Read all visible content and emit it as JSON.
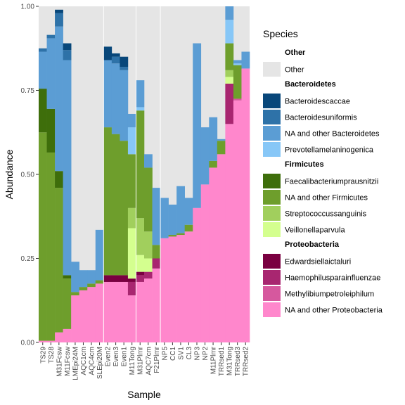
{
  "chart_data": {
    "type": "bar",
    "stacked": true,
    "xlabel": "Sample",
    "ylabel": "Abundance",
    "ylim": [
      0,
      1
    ],
    "yticks": [
      "0.00",
      "0.25",
      "0.50",
      "0.75",
      "1.00"
    ],
    "ytick_values": [
      0,
      0.25,
      0.5,
      0.75,
      1.0
    ],
    "panel_background": "#e5e5e5",
    "legend": {
      "title": "Species",
      "placement": "right",
      "groups": [
        {
          "name": "Other",
          "items": [
            "Other"
          ]
        },
        {
          "name": "Bacteroidetes",
          "items": [
            "Bacteroidescaccae",
            "Bacteroidesuniformis",
            "NA and other Bacteroidetes",
            "Prevotellamelaninogenica"
          ]
        },
        {
          "name": "Firmicutes",
          "items": [
            "Faecalibacteriumprausnitzii",
            "NA and other Firmicutes",
            "Streptococcussanguinis",
            "Veillonellaparvula"
          ]
        },
        {
          "name": "Proteobacteria",
          "items": [
            "Edwardsiellaictaluri",
            "Haemophilusparainfluenzae",
            "Methylibiumpetroleiphilum",
            "NA and other Proteobacteria"
          ]
        }
      ]
    },
    "colors": {
      "Other": "#e5e5e5",
      "Bacteroidescaccae": "#08477a",
      "Bacteroidesuniformis": "#2e72a8",
      "NA and other Bacteroidetes": "#5b9dd4",
      "Prevotellamelaninogenica": "#87c7f7",
      "Faecalibacteriumprausnitzii": "#3e6e0b",
      "NA and other Firmicutes": "#6e9e2c",
      "Streptococcussanguinis": "#a1cf5d",
      "Veillonellaparvula": "#d4ff8f",
      "Edwardsiellaictaluri": "#7a0041",
      "Haemophilusparainfluenzae": "#a82670",
      "Methylibiumpetroleiphilum": "#d6589e",
      "NA and other Proteobacteria": "#ff87cc"
    },
    "stack_order": [
      "NA and other Proteobacteria",
      "Methylibiumpetroleiphilum",
      "Haemophilusparainfluenzae",
      "Edwardsiellaictaluri",
      "Veillonellaparvula",
      "Streptococcussanguinis",
      "NA and other Firmicutes",
      "Faecalibacteriumprausnitzii",
      "Prevotellamelaninogenica",
      "NA and other Bacteroidetes",
      "Bacteroidesuniformis",
      "Bacteroidescaccae"
    ],
    "categories": [
      "TS29",
      "TS28",
      "M31Fcsw",
      "M11Fcsw",
      "LMEpi24M",
      "AQC1cm",
      "AQC4cm",
      "SLEpi20M",
      "Even2",
      "Even3",
      "Even1",
      "M11Tong",
      "M31Plmr",
      "AQC7cm",
      "F21Plmr",
      "NP5",
      "CC1",
      "SV1",
      "CL3",
      "NP3",
      "NP2",
      "M11Plmr",
      "TRRsed1",
      "M31Tong",
      "TRRsed3",
      "TRRsed2"
    ],
    "group_dividers_after": [
      "SLEpi20M",
      "M11Tong",
      "F21Plmr"
    ],
    "series": [
      {
        "name": "NA and other Proteobacteria",
        "values": [
          0.005,
          0.005,
          0.03,
          0.04,
          0.14,
          0.155,
          0.165,
          0.175,
          0.18,
          0.18,
          0.18,
          0.14,
          0.18,
          0.19,
          0.22,
          0.31,
          0.315,
          0.32,
          0.33,
          0.4,
          0.47,
          0.52,
          0.56,
          0.65,
          0.72,
          0.815
        ]
      },
      {
        "name": "Methylibiumpetroleiphilum",
        "values": [
          0,
          0,
          0,
          0,
          0,
          0,
          0,
          0,
          0,
          0,
          0,
          0,
          0,
          0,
          0,
          0,
          0,
          0,
          0,
          0,
          0,
          0,
          0,
          0,
          0.005,
          0
        ]
      },
      {
        "name": "Haemophilusparainfluenzae",
        "values": [
          0,
          0,
          0,
          0,
          0,
          0,
          0,
          0,
          0,
          0,
          0,
          0.04,
          0.02,
          0.02,
          0.03,
          0,
          0,
          0,
          0,
          0,
          0,
          0,
          0,
          0.12,
          0,
          0
        ]
      },
      {
        "name": "Edwardsiellaictaluri",
        "values": [
          0,
          0,
          0,
          0,
          0,
          0,
          0,
          0,
          0.02,
          0.02,
          0.02,
          0.01,
          0.01,
          0,
          0,
          0,
          0,
          0,
          0,
          0,
          0,
          0,
          0,
          0,
          0,
          0
        ]
      },
      {
        "name": "Veillonellaparvula",
        "values": [
          0,
          0,
          0,
          0,
          0,
          0,
          0,
          0,
          0,
          0,
          0,
          0.15,
          0.05,
          0.04,
          0,
          0,
          0,
          0,
          0,
          0,
          0,
          0,
          0,
          0.02,
          0,
          0
        ]
      },
      {
        "name": "Streptococcussanguinis",
        "values": [
          0,
          0,
          0,
          0,
          0,
          0,
          0,
          0,
          0,
          0,
          0,
          0.06,
          0.11,
          0.08,
          0,
          0,
          0,
          0,
          0,
          0,
          0,
          0,
          0,
          0.02,
          0,
          0
        ]
      },
      {
        "name": "NA and other Firmicutes",
        "values": [
          0.62,
          0.56,
          0.43,
          0.15,
          0.01,
          0.01,
          0.01,
          0.01,
          0.44,
          0.42,
          0.4,
          0.16,
          0.32,
          0.19,
          0.04,
          0,
          0.005,
          0.005,
          0.02,
          0,
          0,
          0.02,
          0.04,
          0.08,
          0.1,
          0
        ]
      },
      {
        "name": "Faecalibacteriumprausnitzii",
        "values": [
          0.13,
          0.13,
          0.05,
          0.01,
          0,
          0,
          0,
          0,
          0,
          0,
          0,
          0,
          0,
          0,
          0,
          0,
          0,
          0,
          0,
          0,
          0,
          0,
          0,
          0,
          0,
          0
        ]
      },
      {
        "name": "Prevotellamelaninogenica",
        "values": [
          0,
          0,
          0,
          0,
          0,
          0,
          0,
          0,
          0,
          0,
          0,
          0.08,
          0.01,
          0,
          0,
          0,
          0,
          0,
          0,
          0,
          0,
          0,
          0,
          0.07,
          0.005,
          0
        ]
      },
      {
        "name": "NA and other Bacteroidetes",
        "values": [
          0.11,
          0.21,
          0.43,
          0.64,
          0.09,
          0.05,
          0.04,
          0.15,
          0.2,
          0.21,
          0.21,
          0.04,
          0.08,
          0.04,
          0.17,
          0.12,
          0.09,
          0.14,
          0.08,
          0.49,
          0.17,
          0.13,
          0.005,
          0.04,
          0.01,
          0.05
        ]
      },
      {
        "name": "Bacteroidesuniformis",
        "values": [
          0.01,
          0.01,
          0.04,
          0.03,
          0,
          0,
          0,
          0,
          0,
          0.02,
          0.01,
          0,
          0,
          0,
          0,
          0,
          0,
          0,
          0,
          0,
          0,
          0,
          0,
          0,
          0,
          0
        ]
      },
      {
        "name": "Bacteroidescaccae",
        "values": [
          0,
          0,
          0.01,
          0.02,
          0,
          0,
          0,
          0,
          0.04,
          0.01,
          0.03,
          0,
          0,
          0,
          0,
          0,
          0,
          0,
          0,
          0,
          0,
          0,
          0,
          0,
          0,
          0
        ]
      }
    ]
  }
}
